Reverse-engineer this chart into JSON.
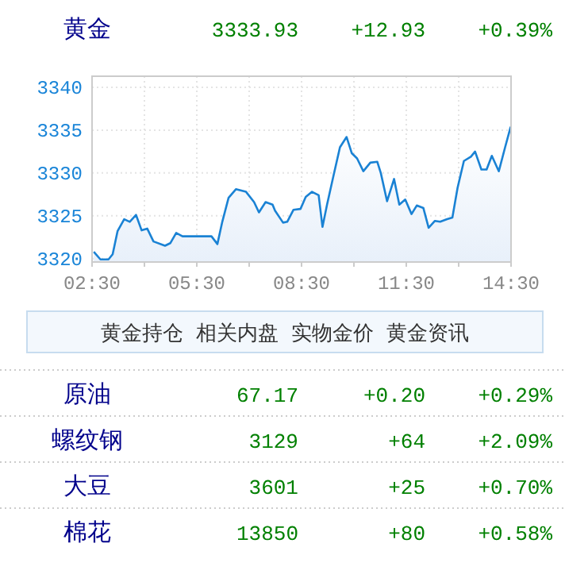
{
  "chart_data": [
    {
      "type": "area",
      "title": "黄金",
      "annotations": [
        "3333.93",
        "+12.93",
        "+0.39%"
      ],
      "x": [
        2.55,
        2.74,
        2.97,
        3.09,
        3.23,
        3.42,
        3.58,
        3.76,
        3.92,
        4.08,
        4.26,
        4.59,
        4.74,
        4.91,
        5.09,
        5.92,
        6.09,
        6.23,
        6.41,
        6.62,
        6.91,
        7.14,
        7.28,
        7.47,
        7.67,
        7.74,
        7.97,
        8.09,
        8.27,
        8.47,
        8.62,
        8.8,
        8.99,
        9.1,
        9.23,
        9.41,
        9.6,
        9.79,
        9.94,
        10.09,
        10.27,
        10.47,
        10.67,
        10.77,
        10.95,
        11.15,
        11.3,
        11.47,
        11.65,
        11.8,
        11.99,
        12.14,
        12.32,
        12.47,
        12.67,
        12.82,
        12.97,
        13.15,
        13.35,
        13.47,
        13.65,
        13.8,
        13.95,
        14.15,
        14.33,
        14.49
      ],
      "series": [
        {
          "color": "#1a82d4",
          "values": [
            3320.8,
            3319.9,
            3319.9,
            3320.5,
            3323.2,
            3324.6,
            3324.3,
            3325.1,
            3323.3,
            3323.5,
            3322.0,
            3321.5,
            3321.8,
            3323.0,
            3322.6,
            3322.6,
            3321.7,
            3324.3,
            3327.1,
            3328.1,
            3327.8,
            3326.6,
            3325.4,
            3326.6,
            3326.3,
            3325.6,
            3324.2,
            3324.3,
            3325.7,
            3325.8,
            3327.2,
            3327.8,
            3327.4,
            3323.7,
            3326.3,
            3329.6,
            3333.0,
            3334.2,
            3332.3,
            3331.7,
            3330.2,
            3331.2,
            3331.3,
            3330.0,
            3326.7,
            3329.3,
            3326.3,
            3326.9,
            3325.2,
            3326.2,
            3325.9,
            3323.6,
            3324.4,
            3324.3,
            3324.6,
            3324.8,
            3328.3,
            3331.4,
            3331.9,
            3332.5,
            3330.4,
            3330.4,
            3332.0,
            3330.2,
            3333.0,
            3335.4
          ]
        }
      ],
      "xlim": [
        2.5,
        14.5
      ],
      "xticks": [
        {
          "value": 2.5,
          "label": "02:30"
        },
        {
          "value": 4,
          "label": null
        },
        {
          "value": 5.5,
          "label": "05:30"
        },
        {
          "value": 7,
          "label": null
        },
        {
          "value": 8.5,
          "label": "08:30"
        },
        {
          "value": 10,
          "label": null
        },
        {
          "value": 11.5,
          "label": "11:30"
        },
        {
          "value": 13,
          "label": null
        },
        {
          "value": 14.5,
          "label": "14:30"
        }
      ],
      "ylim": [
        3319.6,
        3341.3
      ],
      "yticks": [
        3320,
        3325,
        3330,
        3335,
        3340
      ],
      "grid": true,
      "marker": "none"
    },
    {
      "type": "other",
      "annotations": [
        "黄金持仓",
        "相关内盘",
        "实物金价",
        "黄金资讯"
      ]
    },
    {
      "type": "other",
      "categories": [
        "原油",
        "螺纹钢",
        "大豆",
        "棉花"
      ],
      "cell_labels": [
        [
          "67.17",
          "+0.20",
          "+0.29%"
        ],
        [
          "3129",
          "+64",
          "+2.09%"
        ],
        [
          "3601",
          "+25",
          "+0.70%"
        ],
        [
          "13850",
          "+80",
          "+0.58%"
        ]
      ]
    }
  ]
}
